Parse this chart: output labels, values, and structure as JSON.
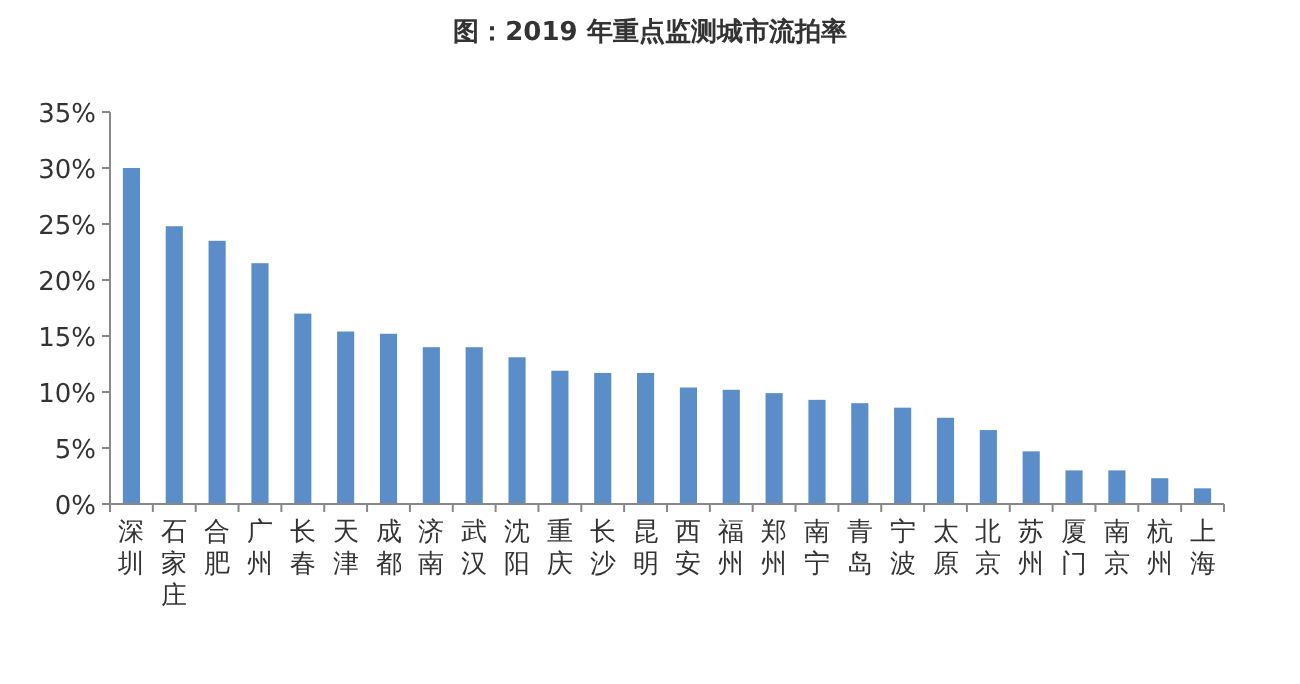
{
  "chart_data": {
    "type": "bar",
    "title": "图：2019 年重点监测城市流拍率",
    "categories": [
      "深圳",
      "石家庄",
      "合肥",
      "广州",
      "长春",
      "天津",
      "成都",
      "济南",
      "武汉",
      "沈阳",
      "重庆",
      "长沙",
      "昆明",
      "西安",
      "福州",
      "郑州",
      "南宁",
      "青岛",
      "宁波",
      "太原",
      "北京",
      "苏州",
      "厦门",
      "南京",
      "杭州",
      "上海"
    ],
    "values": [
      30,
      24.8,
      23.5,
      21.5,
      17.0,
      15.4,
      15.2,
      14.0,
      14.0,
      13.1,
      11.9,
      11.7,
      11.7,
      10.4,
      10.2,
      9.9,
      9.3,
      9.0,
      8.6,
      7.7,
      6.6,
      4.7,
      3.0,
      3.0,
      2.3,
      1.4
    ],
    "color": "#5b8ec9",
    "ylim": [
      0,
      35
    ],
    "yticks": [
      {
        "value": 0,
        "label": "0%"
      },
      {
        "value": 5,
        "label": "5%"
      },
      {
        "value": 10,
        "label": "10%"
      },
      {
        "value": 15,
        "label": "15%"
      },
      {
        "value": 20,
        "label": "20%"
      },
      {
        "value": 25,
        "label": "25%"
      },
      {
        "value": 30,
        "label": "30%"
      },
      {
        "value": 35,
        "label": "35%"
      }
    ],
    "grid": false
  }
}
